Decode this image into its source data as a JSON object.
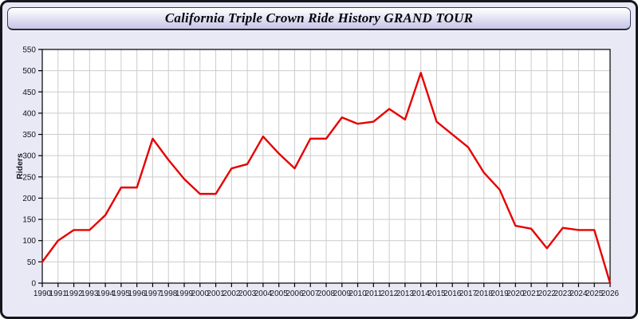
{
  "header": {
    "title": "California Triple Crown Ride History GRAND TOUR"
  },
  "chart_data": {
    "type": "line",
    "title": "California Triple Crown Ride History GRAND TOUR",
    "xlabel": "",
    "ylabel": "Riders",
    "x": [
      1990,
      1991,
      1992,
      1993,
      1994,
      1995,
      1996,
      1997,
      1998,
      1999,
      2000,
      2001,
      2002,
      2003,
      2004,
      2005,
      2006,
      2007,
      2008,
      2009,
      2010,
      2011,
      2012,
      2013,
      2014,
      2015,
      2016,
      2017,
      2018,
      2019,
      2020,
      2021,
      2022,
      2023,
      2024,
      2025,
      2026
    ],
    "series": [
      {
        "name": "Riders",
        "values": [
          50,
          100,
          125,
          125,
          160,
          225,
          225,
          340,
          290,
          245,
          210,
          210,
          270,
          280,
          345,
          305,
          270,
          340,
          340,
          390,
          375,
          380,
          410,
          385,
          495,
          380,
          350,
          320,
          260,
          220,
          135,
          128,
          82,
          130,
          125,
          125,
          0
        ]
      }
    ],
    "ylim": [
      0,
      550
    ],
    "ytick_step": 50,
    "grid": true,
    "legend": "none"
  },
  "colors": {
    "line": "#e60000",
    "page_bg": "#e9e9f6",
    "plot_bg": "#ffffff",
    "grid": "#cccccc",
    "axis": "#000000",
    "tick_label": "#15151f",
    "outer_border": "#16161f"
  }
}
